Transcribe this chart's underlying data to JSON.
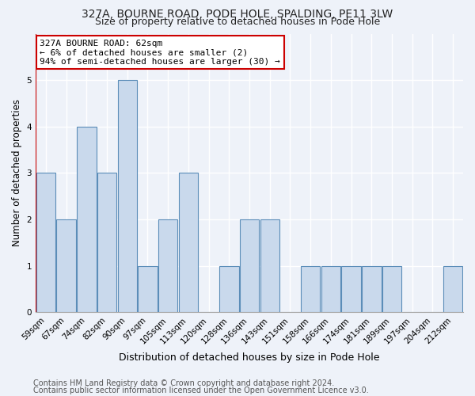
{
  "title": "327A, BOURNE ROAD, PODE HOLE, SPALDING, PE11 3LW",
  "subtitle": "Size of property relative to detached houses in Pode Hole",
  "xlabel_bottom": "Distribution of detached houses by size in Pode Hole",
  "ylabel": "Number of detached properties",
  "categories": [
    "59sqm",
    "67sqm",
    "74sqm",
    "82sqm",
    "90sqm",
    "97sqm",
    "105sqm",
    "113sqm",
    "120sqm",
    "128sqm",
    "136sqm",
    "143sqm",
    "151sqm",
    "158sqm",
    "166sqm",
    "174sqm",
    "181sqm",
    "189sqm",
    "197sqm",
    "204sqm",
    "212sqm"
  ],
  "values": [
    3,
    2,
    4,
    3,
    5,
    1,
    2,
    3,
    0,
    1,
    2,
    2,
    0,
    1,
    1,
    1,
    1,
    1,
    0,
    0,
    1
  ],
  "bar_color": "#c9d9ec",
  "bar_edge_color": "#5b8db8",
  "annotation_box_text": "327A BOURNE ROAD: 62sqm\n← 6% of detached houses are smaller (2)\n94% of semi-detached houses are larger (30) →",
  "annotation_box_facecolor": "#ffffff",
  "annotation_box_edge_color": "#cc0000",
  "vline_x": -0.5,
  "vline_color": "#cc0000",
  "footer1": "Contains HM Land Registry data © Crown copyright and database right 2024.",
  "footer2": "Contains public sector information licensed under the Open Government Licence v3.0.",
  "ylim": [
    0,
    6
  ],
  "yticks": [
    0,
    1,
    2,
    3,
    4,
    5,
    6
  ],
  "background_color": "#eef2f9",
  "grid_color": "#ffffff",
  "title_fontsize": 10,
  "subtitle_fontsize": 9,
  "annot_fontsize": 8,
  "tick_fontsize": 7.5,
  "ylabel_fontsize": 8.5,
  "xlabel_fontsize": 9,
  "footer_fontsize": 7
}
